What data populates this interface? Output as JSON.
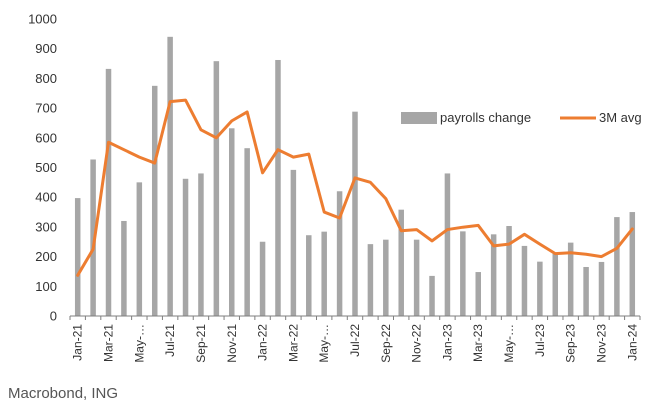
{
  "chart_data": {
    "type": "bar",
    "categories": [
      "Jan-21",
      "Feb-21",
      "Mar-21",
      "Apr-21",
      "May-21",
      "Jun-21",
      "Jul-21",
      "Aug-21",
      "Sep-21",
      "Oct-21",
      "Nov-21",
      "Dec-21",
      "Jan-22",
      "Feb-22",
      "Mar-22",
      "Apr-22",
      "May-22",
      "Jun-22",
      "Jul-22",
      "Aug-22",
      "Sep-22",
      "Oct-22",
      "Nov-22",
      "Dec-22",
      "Jan-23",
      "Feb-23",
      "Mar-23",
      "Apr-23",
      "May-23",
      "Jun-23",
      "Jul-23",
      "Aug-23",
      "Sep-23",
      "Oct-23",
      "Nov-23",
      "Dec-23",
      "Jan-24"
    ],
    "tick_labels": [
      "Jan-21",
      "Mar-21",
      "May-…",
      "Jul-21",
      "Sep-21",
      "Nov-21",
      "Jan-22",
      "Mar-22",
      "May-…",
      "Jul-22",
      "Sep-22",
      "Nov-22",
      "Jan-23",
      "Mar-23",
      "May-…",
      "Jul-23",
      "Sep-23",
      "Nov-23",
      "Jan-24"
    ],
    "tick_label_step": 2,
    "series": [
      {
        "name": "payrolls change",
        "type": "bar",
        "color": "#a6a6a6",
        "values": [
          397,
          527,
          832,
          320,
          450,
          775,
          940,
          462,
          480,
          858,
          632,
          565,
          250,
          862,
          492,
          272,
          284,
          420,
          688,
          242,
          257,
          358,
          257,
          135,
          480,
          285,
          148,
          275,
          303,
          236,
          183,
          210,
          247,
          165,
          182,
          333,
          350
        ]
      },
      {
        "name": "3M avg",
        "type": "line",
        "color": "#ed7d31",
        "values": [
          137,
          225,
          585,
          560,
          535,
          515,
          722,
          727,
          627,
          600,
          657,
          687,
          482,
          560,
          535,
          545,
          350,
          330,
          465,
          450,
          395,
          287,
          291,
          253,
          291,
          299,
          305,
          236,
          242,
          275,
          242,
          210,
          213,
          208,
          200,
          228,
          293
        ]
      }
    ],
    "ylim": [
      0,
      1000
    ],
    "yticks": [
      0,
      100,
      200,
      300,
      400,
      500,
      600,
      700,
      800,
      900,
      1000
    ],
    "title": "",
    "xlabel": "",
    "ylabel": "",
    "grid": false,
    "legend_position": "top-right"
  },
  "source": "Macrobond, ING"
}
